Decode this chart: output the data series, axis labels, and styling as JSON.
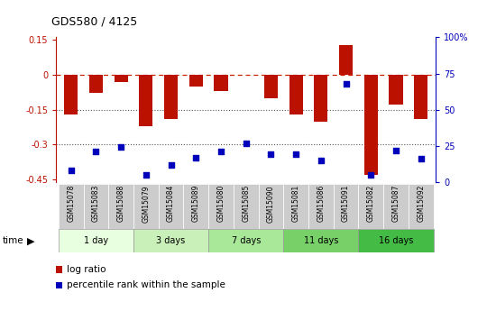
{
  "title": "GDS580 / 4125",
  "samples": [
    "GSM15078",
    "GSM15083",
    "GSM15088",
    "GSM15079",
    "GSM15084",
    "GSM15089",
    "GSM15080",
    "GSM15085",
    "GSM15090",
    "GSM15081",
    "GSM15086",
    "GSM15091",
    "GSM15082",
    "GSM15087",
    "GSM15092"
  ],
  "log_ratio": [
    -0.17,
    -0.08,
    -0.03,
    -0.22,
    -0.19,
    -0.05,
    -0.07,
    0.0,
    -0.1,
    -0.17,
    -0.2,
    0.125,
    -0.43,
    -0.13,
    -0.19
  ],
  "percentile": [
    8,
    21,
    24,
    5,
    12,
    17,
    21,
    27,
    19,
    19,
    15,
    68,
    5,
    22,
    16
  ],
  "groups": [
    {
      "label": "1 day",
      "count": 3,
      "color": "#e8ffe0"
    },
    {
      "label": "3 days",
      "count": 3,
      "color": "#c8f0b8"
    },
    {
      "label": "7 days",
      "count": 3,
      "color": "#a8e898"
    },
    {
      "label": "11 days",
      "count": 3,
      "color": "#78d068"
    },
    {
      "label": "16 days",
      "count": 3,
      "color": "#44bb44"
    }
  ],
  "ylim": [
    -0.46,
    0.16
  ],
  "yticks_left": [
    0.15,
    0,
    -0.15,
    -0.3,
    -0.45
  ],
  "ytick_labels_left": [
    "0.15",
    "0",
    "-0.15",
    "-0.3",
    "-0.45"
  ],
  "y_right_ticks_pct": [
    100,
    75,
    50,
    25,
    0
  ],
  "bar_color": "#bb1100",
  "dot_color": "#0000bb",
  "dashed_color": "#cc2200",
  "dotted_color": "#555555",
  "sample_bg": "#cccccc",
  "bg_color": "#ffffff"
}
